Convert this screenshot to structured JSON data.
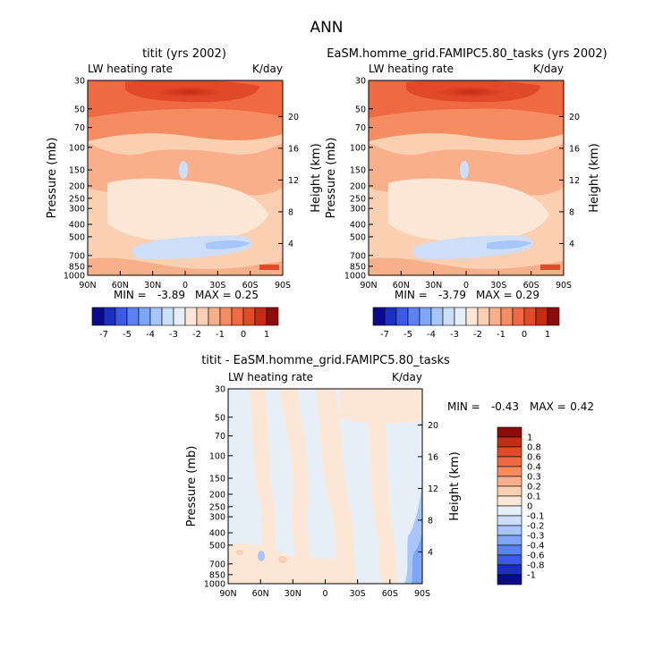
{
  "figure_title": "ANN",
  "palette": {
    "neg": [
      "#0a0a8c",
      "#1c2fc4",
      "#3b5ae6",
      "#5a82f0",
      "#7ea6f6",
      "#a8c6fa",
      "#ccdef8",
      "#e6eef8"
    ],
    "pos": [
      "#fce6d6",
      "#fbcfb2",
      "#f9b08a",
      "#f58c62",
      "#ef6a42",
      "#e04a28",
      "#c42c14",
      "#8c0c0c"
    ]
  },
  "chart_data": [
    {
      "type": "heatmap",
      "id": "panel-1",
      "title": "titit (yrs 2002)",
      "variable_label": "LW heating rate",
      "units": "K/day",
      "ylabel": "Pressure (mb)",
      "y2label": "Height (km)",
      "xticks": [
        "90N",
        "60N",
        "30N",
        "0",
        "30S",
        "60S",
        "90S"
      ],
      "yticks": [
        "30",
        "50",
        "70",
        "100",
        "150",
        "200",
        "250",
        "300",
        "400",
        "500",
        "700",
        "850",
        "1000"
      ],
      "y2ticks": [
        "20",
        "16",
        "12",
        "8",
        "4"
      ],
      "min_label": "MIN =",
      "min": "-3.89",
      "max_label": "MAX =",
      "max": "0.25",
      "colorbar_ticks": [
        "-7",
        "-5",
        "-4",
        "-3",
        "-2",
        "-1",
        "0",
        "1"
      ]
    },
    {
      "type": "heatmap",
      "id": "panel-2",
      "title": "EaSM.homme_grid.FAMIPC5.80_tasks (yrs 2002)",
      "variable_label": "LW heating rate",
      "units": "K/day",
      "ylabel": "Pressure (mb)",
      "y2label": "Height (km)",
      "xticks": [
        "90N",
        "60N",
        "30N",
        "0",
        "30S",
        "60S",
        "90S"
      ],
      "yticks": [
        "30",
        "50",
        "70",
        "100",
        "150",
        "200",
        "250",
        "300",
        "400",
        "500",
        "700",
        "850",
        "1000"
      ],
      "y2ticks": [
        "20",
        "16",
        "12",
        "8",
        "4"
      ],
      "min_label": "MIN =",
      "min": "-3.79",
      "max_label": "MAX =",
      "max": "0.29",
      "colorbar_ticks": [
        "-7",
        "-5",
        "-4",
        "-3",
        "-2",
        "-1",
        "0",
        "1"
      ]
    },
    {
      "type": "heatmap",
      "id": "panel-diff",
      "title": "titit - EaSM.homme_grid.FAMIPC5.80_tasks",
      "variable_label": "LW heating rate",
      "units": "K/day",
      "ylabel": "Pressure (mb)",
      "y2label": "Height (km)",
      "xticks": [
        "90N",
        "60N",
        "30N",
        "0",
        "30S",
        "60S",
        "90S"
      ],
      "yticks": [
        "30",
        "50",
        "70",
        "100",
        "150",
        "200",
        "250",
        "300",
        "400",
        "500",
        "700",
        "850",
        "1000"
      ],
      "y2ticks": [
        "20",
        "16",
        "12",
        "8",
        "4"
      ],
      "min_label": "MIN =",
      "min": "-0.43",
      "max_label": "MAX =",
      "max": "0.42",
      "colorbar_ticks": [
        "1",
        "0.8",
        "0.6",
        "0.4",
        "0.3",
        "0.2",
        "0.1",
        "0",
        "-0.1",
        "-0.2",
        "-0.3",
        "-0.4",
        "-0.6",
        "-0.8",
        "-1"
      ]
    }
  ]
}
